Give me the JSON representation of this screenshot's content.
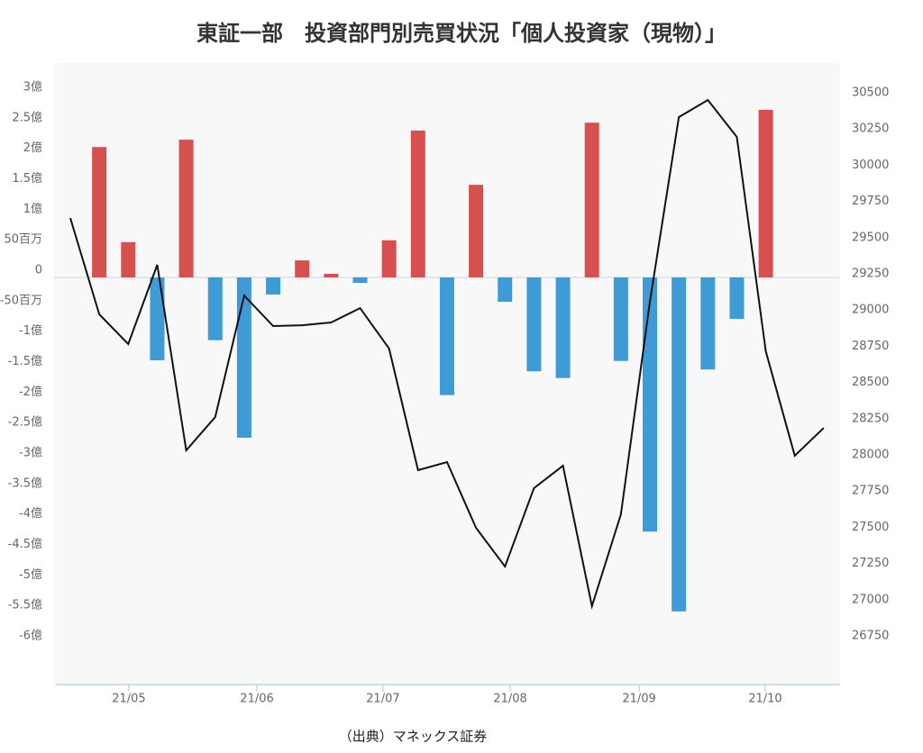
{
  "chart_data": {
    "type": "bar",
    "title": "東証一部　投資部門別売買状況「個人投資家（現物）」",
    "source": "（出典）マネックス証券",
    "categories": [
      null,
      null,
      null,
      null,
      null,
      null,
      null,
      null,
      null,
      null,
      null,
      null,
      null,
      null,
      null,
      null,
      null,
      null,
      null,
      null,
      null,
      null,
      null,
      null,
      null,
      null,
      null
    ],
    "xticks": [
      {
        "value": 2.02,
        "label": "21/05"
      },
      {
        "value": 6.44,
        "label": "21/06"
      },
      {
        "value": 10.79,
        "label": "21/07"
      },
      {
        "value": 15.18,
        "label": "21/08"
      },
      {
        "value": 19.63,
        "label": "21/09"
      },
      {
        "value": 23.98,
        "label": "21/10"
      }
    ],
    "ylim": [
      -6.68,
      3.37
    ],
    "yticks": [
      {
        "value": 3,
        "label": "3億"
      },
      {
        "value": 2.5,
        "label": "2.5億"
      },
      {
        "value": 2,
        "label": "2億"
      },
      {
        "value": 1.5,
        "label": "1.5億"
      },
      {
        "value": 1,
        "label": "1億"
      },
      {
        "value": 0.5,
        "label": "50百万"
      },
      0,
      {
        "value": -0.5,
        "label": "-50百万"
      },
      {
        "value": -1,
        "label": "-1億"
      },
      {
        "value": -1.5,
        "label": "-1.5億"
      },
      {
        "value": -2,
        "label": "-2億"
      },
      {
        "value": -2.5,
        "label": "-2.5億"
      },
      {
        "value": -3,
        "label": "-3億"
      },
      {
        "value": -3.5,
        "label": "-3.5億"
      },
      {
        "value": -4,
        "label": "-4億"
      },
      {
        "value": -4.5,
        "label": "-4.5億"
      },
      {
        "value": -5,
        "label": "-5億"
      },
      {
        "value": -5.5,
        "label": "-5.5億"
      },
      {
        "value": -6,
        "label": "-6億"
      }
    ],
    "y2lim": [
      26464,
      30693
    ],
    "y2ticks": [
      30500,
      30250,
      30000,
      29750,
      29500,
      29250,
      29000,
      28750,
      28500,
      28250,
      28000,
      27750,
      27500,
      27250,
      27000,
      26750
    ],
    "series": [
      {
        "type": "bar",
        "color": "#d65050",
        "negative_color": "#3f9bd5",
        "values": [
          null,
          2.14,
          0.58,
          -1.36,
          2.26,
          -1.03,
          -2.63,
          -0.28,
          0.28,
          0.06,
          -0.09,
          0.61,
          2.41,
          -1.93,
          1.52,
          -0.4,
          -1.54,
          -1.65,
          2.54,
          -1.37,
          -4.17,
          -5.48,
          -1.51,
          -0.68,
          2.75,
          null,
          null
        ]
      },
      {
        "type": "line",
        "axis": "y2",
        "color": "#111111",
        "values": [
          29685,
          29020,
          28815,
          29362,
          28081,
          28311,
          29150,
          28939,
          28945,
          28964,
          29063,
          28784,
          27944,
          28000,
          27546,
          27279,
          27820,
          27975,
          27005,
          27639,
          29107,
          30382,
          30500,
          30245,
          28765,
          28044,
          28236
        ]
      }
    ]
  }
}
